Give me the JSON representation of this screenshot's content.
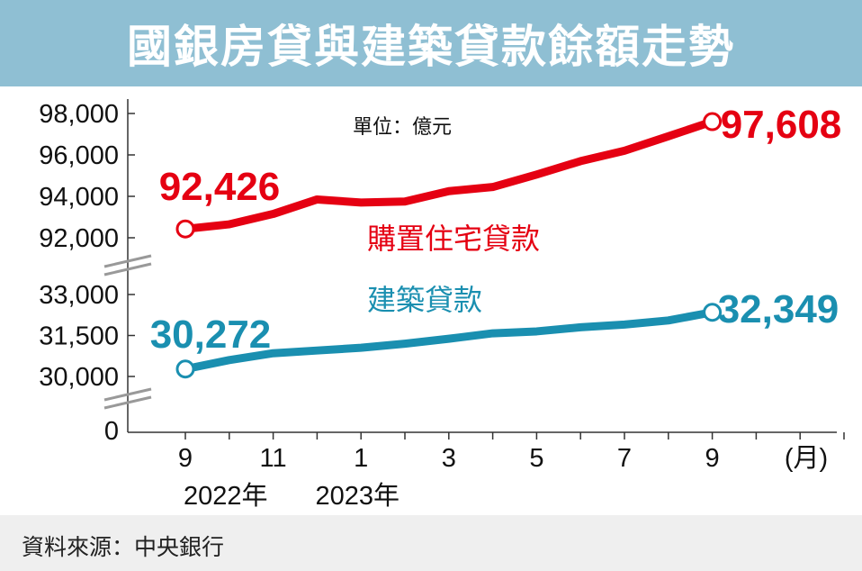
{
  "header": {
    "title": "國銀房貸與建築貸款餘額走勢"
  },
  "footer": {
    "source": "資料來源：中央銀行"
  },
  "chart_data": {
    "type": "line",
    "unit": "單位：億元",
    "x_labels": [
      "9",
      "11",
      "1",
      "3",
      "5",
      "7",
      "9"
    ],
    "x_label_unit": "(月)",
    "year_labels": [
      "2022年",
      "2023年"
    ],
    "upper_y_ticks": [
      "98,000",
      "96,000",
      "94,000",
      "92,000"
    ],
    "lower_y_ticks": [
      "33,000",
      "31,500",
      "30,000"
    ],
    "zero_tick": "0",
    "series": [
      {
        "name": "購置住宅貸款",
        "color": "#e50012",
        "x": [
          "2022-09",
          "2022-10",
          "2022-11",
          "2022-12",
          "2023-01",
          "2023-02",
          "2023-03",
          "2023-04",
          "2023-05",
          "2023-06",
          "2023-07",
          "2023-08",
          "2023-09"
        ],
        "values": [
          92426,
          92650,
          93150,
          93850,
          93700,
          93750,
          94250,
          94450,
          95050,
          95700,
          96200,
          96900,
          97608
        ],
        "start_label": "92,426",
        "end_label": "97,608"
      },
      {
        "name": "建築貸款",
        "color": "#1a8fb0",
        "x": [
          "2022-09",
          "2022-10",
          "2022-11",
          "2022-12",
          "2023-01",
          "2023-02",
          "2023-03",
          "2023-04",
          "2023-05",
          "2023-06",
          "2023-07",
          "2023-08",
          "2023-09"
        ],
        "values": [
          30272,
          30600,
          30850,
          30950,
          31050,
          31200,
          31380,
          31580,
          31650,
          31800,
          31900,
          32050,
          32349
        ],
        "start_label": "30,272",
        "end_label": "32,349"
      }
    ]
  }
}
